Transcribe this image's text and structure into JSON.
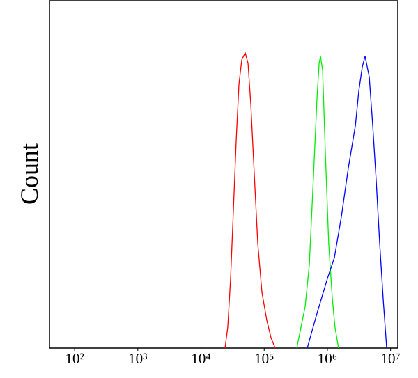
{
  "chart_data": {
    "type": "line",
    "y_label": "Count",
    "x_log": true,
    "xlim": [
      40,
      13000000
    ],
    "ylim": [
      0,
      100
    ],
    "xticks": [
      {
        "value": 100,
        "label": "10²"
      },
      {
        "value": 1000,
        "label": "10³"
      },
      {
        "value": 10000,
        "label": "10⁴"
      },
      {
        "value": 100000,
        "label": "10⁵"
      },
      {
        "value": 1000000,
        "label": "10⁶"
      },
      {
        "value": 10000000,
        "label": "10⁷"
      }
    ],
    "series": [
      {
        "color": "#ff0000",
        "x": [
          24000,
          26500,
          29400,
          32600,
          36100,
          39900,
          44200,
          50100,
          55500,
          61500,
          69700,
          79200,
          92200,
          110000,
          128000,
          149000
        ],
        "values": [
          0,
          6,
          20,
          40,
          60,
          76,
          83,
          85,
          82,
          70,
          50,
          30,
          16,
          8,
          3,
          0
        ]
      },
      {
        "color": "#00ee00",
        "x": [
          328000,
          382000,
          445000,
          518000,
          604000,
          685000,
          740000,
          778000,
          840000,
          929000,
          1050000,
          1200000,
          1320000,
          1500000
        ],
        "values": [
          0,
          6,
          12,
          24,
          50,
          72,
          82,
          84,
          80,
          56,
          30,
          14,
          6,
          0
        ]
      },
      {
        "color": "#0000ff",
        "x": [
          480000,
          685000,
          1000000,
          1290000,
          1670000,
          2150000,
          2770000,
          3140000,
          3570000,
          3950000,
          4600000,
          5220000,
          5930000,
          6730000,
          7640000,
          8670000
        ],
        "values": [
          0,
          10,
          20,
          26,
          38,
          52,
          64,
          74,
          81,
          84,
          78,
          64,
          48,
          30,
          14,
          0
        ]
      }
    ]
  }
}
